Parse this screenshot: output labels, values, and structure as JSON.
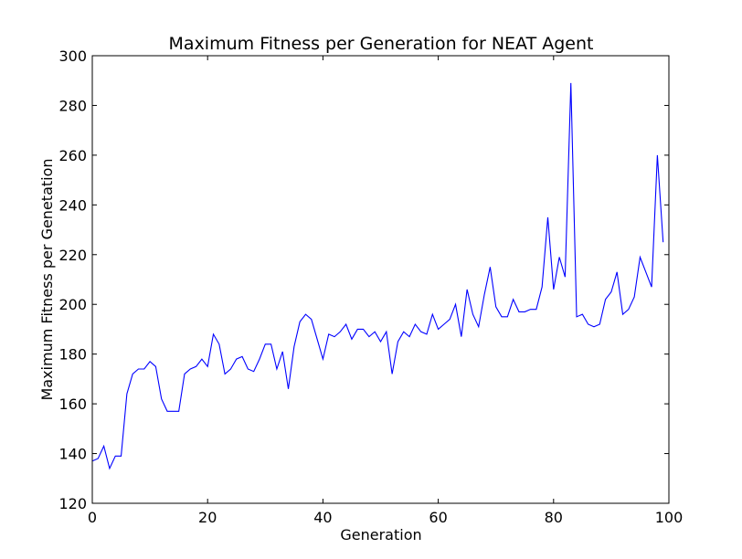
{
  "chart_data": {
    "type": "line",
    "title": "Maximum Fitness per Generation for NEAT Agent",
    "xlabel": "Generation",
    "ylabel": "Maximum Fitness per Genetation",
    "xlim": [
      0,
      100
    ],
    "ylim": [
      120,
      300
    ],
    "xticks": [
      0,
      20,
      40,
      60,
      80,
      100
    ],
    "yticks": [
      120,
      140,
      160,
      180,
      200,
      220,
      240,
      260,
      280,
      300
    ],
    "grid": false,
    "line_color": "#0000ff",
    "series": [
      {
        "x": [
          0,
          1,
          2,
          3,
          4,
          5,
          6,
          7,
          8,
          9,
          10,
          11,
          12,
          13,
          14,
          15,
          16,
          17,
          18,
          19,
          20,
          21,
          22,
          23,
          24,
          25,
          26,
          27,
          28,
          29,
          30,
          31,
          32,
          33,
          34,
          35,
          36,
          37,
          38,
          39,
          40,
          41,
          42,
          43,
          44,
          45,
          46,
          47,
          48,
          49,
          50,
          51,
          52,
          53,
          54,
          55,
          56,
          57,
          58,
          59,
          60,
          61,
          62,
          63,
          64,
          65,
          66,
          67,
          68,
          69,
          70,
          71,
          72,
          73,
          74,
          75,
          76,
          77,
          78,
          79,
          80,
          81,
          82,
          83,
          84,
          85,
          86,
          87,
          88,
          89,
          90,
          91,
          92,
          93,
          94,
          95,
          96,
          97,
          98,
          99
        ],
        "values": [
          137,
          138,
          143,
          134,
          139,
          139,
          164,
          172,
          174,
          174,
          177,
          175,
          162,
          157,
          157,
          157,
          172,
          174,
          175,
          178,
          175,
          188,
          184,
          172,
          174,
          178,
          179,
          174,
          173,
          178,
          184,
          184,
          174,
          181,
          166,
          183,
          193,
          196,
          194,
          186,
          178,
          188,
          187,
          189,
          192,
          186,
          190,
          190,
          187,
          189,
          185,
          189,
          172,
          185,
          189,
          187,
          192,
          189,
          188,
          196,
          190,
          192,
          194,
          200,
          187,
          206,
          196,
          191,
          204,
          215,
          199,
          195,
          195,
          202,
          197,
          197,
          198,
          198,
          207,
          235,
          206,
          219,
          211,
          289,
          195,
          196,
          192,
          191,
          192,
          202,
          205,
          213,
          196,
          198,
          203,
          219,
          213,
          207,
          260,
          225
        ]
      }
    ]
  }
}
